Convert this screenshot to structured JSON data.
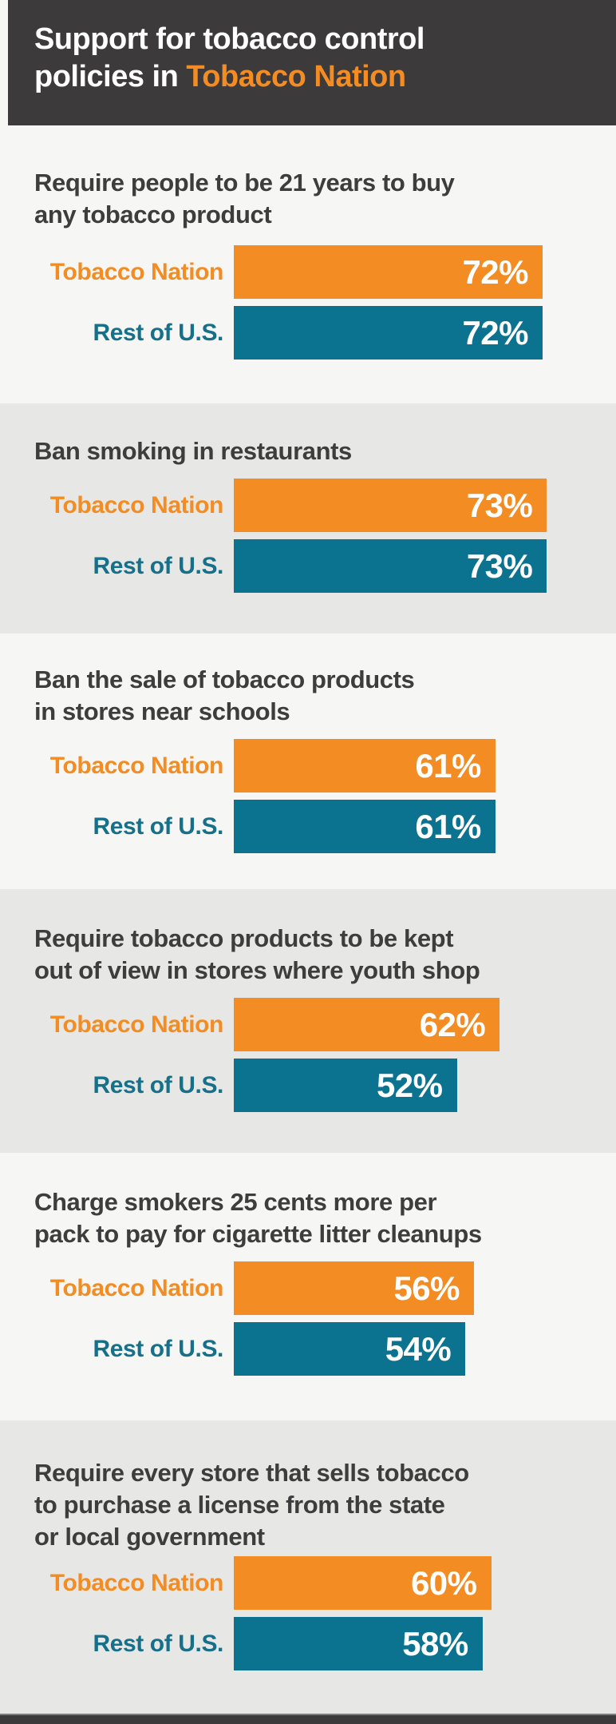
{
  "header": {
    "line1": "Support for tobacco control",
    "line2_prefix": "policies in ",
    "line2_highlight": "Tobacco Nation"
  },
  "colors": {
    "orange": "#F28C23",
    "teal_bar": "#0B7390",
    "teal_label": "#16708A",
    "header_bg": "#3C3A3B",
    "section_light": "#F6F6F4",
    "section_dark": "#E7E7E5",
    "title_gray": "#3E3D3D",
    "footer_line": "#7E7E7E",
    "value_text": "#FFFFFF"
  },
  "chart_data": {
    "type": "bar",
    "orientation": "horizontal",
    "unit": "percent",
    "title": "Support for tobacco control policies in Tobacco Nation",
    "legend_position": "row-labels",
    "xlim": [
      0,
      100
    ],
    "grid": false,
    "series": [
      {
        "name": "Tobacco Nation",
        "color": "#F28C23"
      },
      {
        "name": "Rest of U.S.",
        "color": "#0B7390"
      }
    ],
    "policies": [
      {
        "title": "Require people to be 21 years to buy\nany tobacco product",
        "bars": [
          {
            "label": "Tobacco Nation",
            "value": 72,
            "display": "72%"
          },
          {
            "label": "Rest of U.S.",
            "value": 72,
            "display": "72%"
          }
        ]
      },
      {
        "title": "Ban smoking in restaurants",
        "bars": [
          {
            "label": "Tobacco Nation",
            "value": 73,
            "display": "73%"
          },
          {
            "label": "Rest of U.S.",
            "value": 73,
            "display": "73%"
          }
        ]
      },
      {
        "title": "Ban the sale of tobacco products\nin stores near schools",
        "bars": [
          {
            "label": "Tobacco Nation",
            "value": 61,
            "display": "61%"
          },
          {
            "label": "Rest of U.S.",
            "value": 61,
            "display": "61%"
          }
        ]
      },
      {
        "title": "Require tobacco products to be kept\nout of view in stores where youth shop",
        "bars": [
          {
            "label": "Tobacco Nation",
            "value": 62,
            "display": "62%"
          },
          {
            "label": "Rest of U.S.",
            "value": 52,
            "display": "52%"
          }
        ]
      },
      {
        "title": "Charge smokers 25 cents more per\npack to pay for cigarette litter cleanups",
        "bars": [
          {
            "label": "Tobacco Nation",
            "value": 56,
            "display": "56%"
          },
          {
            "label": "Rest of U.S.",
            "value": 54,
            "display": "54%"
          }
        ]
      },
      {
        "title": "Require every store that sells tobacco\nto purchase a license from the state\nor local government",
        "bars": [
          {
            "label": "Tobacco Nation",
            "value": 60,
            "display": "60%"
          },
          {
            "label": "Rest of U.S.",
            "value": 58,
            "display": "58%"
          }
        ]
      }
    ]
  }
}
